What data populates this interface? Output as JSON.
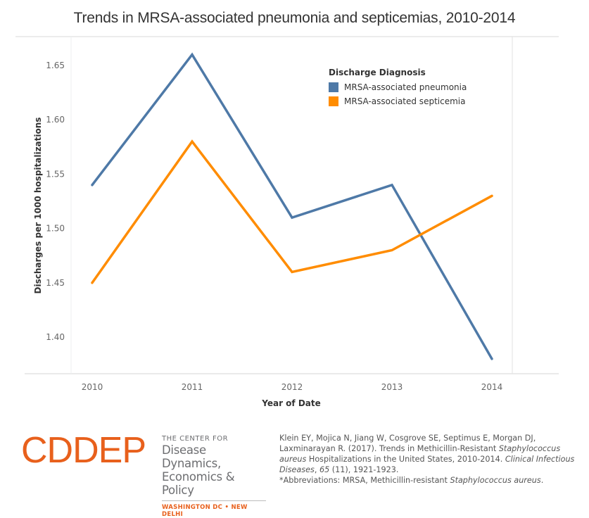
{
  "chart_data": {
    "type": "line",
    "title": "Trends in MRSA-associated pneumonia and septicemias, 2010-2014",
    "xlabel": "Year of Date",
    "ylabel": "Discharges per 1000 hospitalizations",
    "x": [
      "2010",
      "2011",
      "2012",
      "2013",
      "2014"
    ],
    "y_ticks": [
      "1.40",
      "1.45",
      "1.50",
      "1.55",
      "1.60",
      "1.65"
    ],
    "ylim": [
      1.3675,
      1.6725
    ],
    "grid": false,
    "legend": {
      "title": "Discharge Diagnosis",
      "placement": "top-right"
    },
    "series": [
      {
        "name": "MRSA-associated pneumonia",
        "color": "#4e79a7",
        "values": [
          1.54,
          1.66,
          1.51,
          1.54,
          1.38
        ]
      },
      {
        "name": "MRSA-associated septicemia",
        "color": "#ff8c00",
        "values": [
          1.45,
          1.58,
          1.46,
          1.48,
          1.53
        ]
      }
    ]
  },
  "footer": {
    "logo": {
      "acronym": "CDDEP",
      "line1": "THE CENTER FOR",
      "line2": "Disease Dynamics,",
      "line3": "Economics & Policy",
      "cities": "WASHINGTON DC • NEW DELHI"
    },
    "citation": {
      "authors": "Klein EY, Mojica N, Jiang W, Cosgrove SE, Septimus E, Morgan DJ, Laxminarayan R. (2017). Trends in Methicillin-Resistant ",
      "italic1": "Staphylococcus aureus",
      "part2": " Hospitalizations in the United States, 2010-2014. ",
      "journal": "Clinical Infectious Diseases",
      "sep": ", ",
      "volume": "65",
      "part3": " (11), 1921-1923.",
      "abbrev_prefix": "*Abbreviations: MRSA, Methicillin-resistant ",
      "abbrev_italic": "Staphylococcus aureus",
      "abbrev_suffix": "."
    }
  }
}
